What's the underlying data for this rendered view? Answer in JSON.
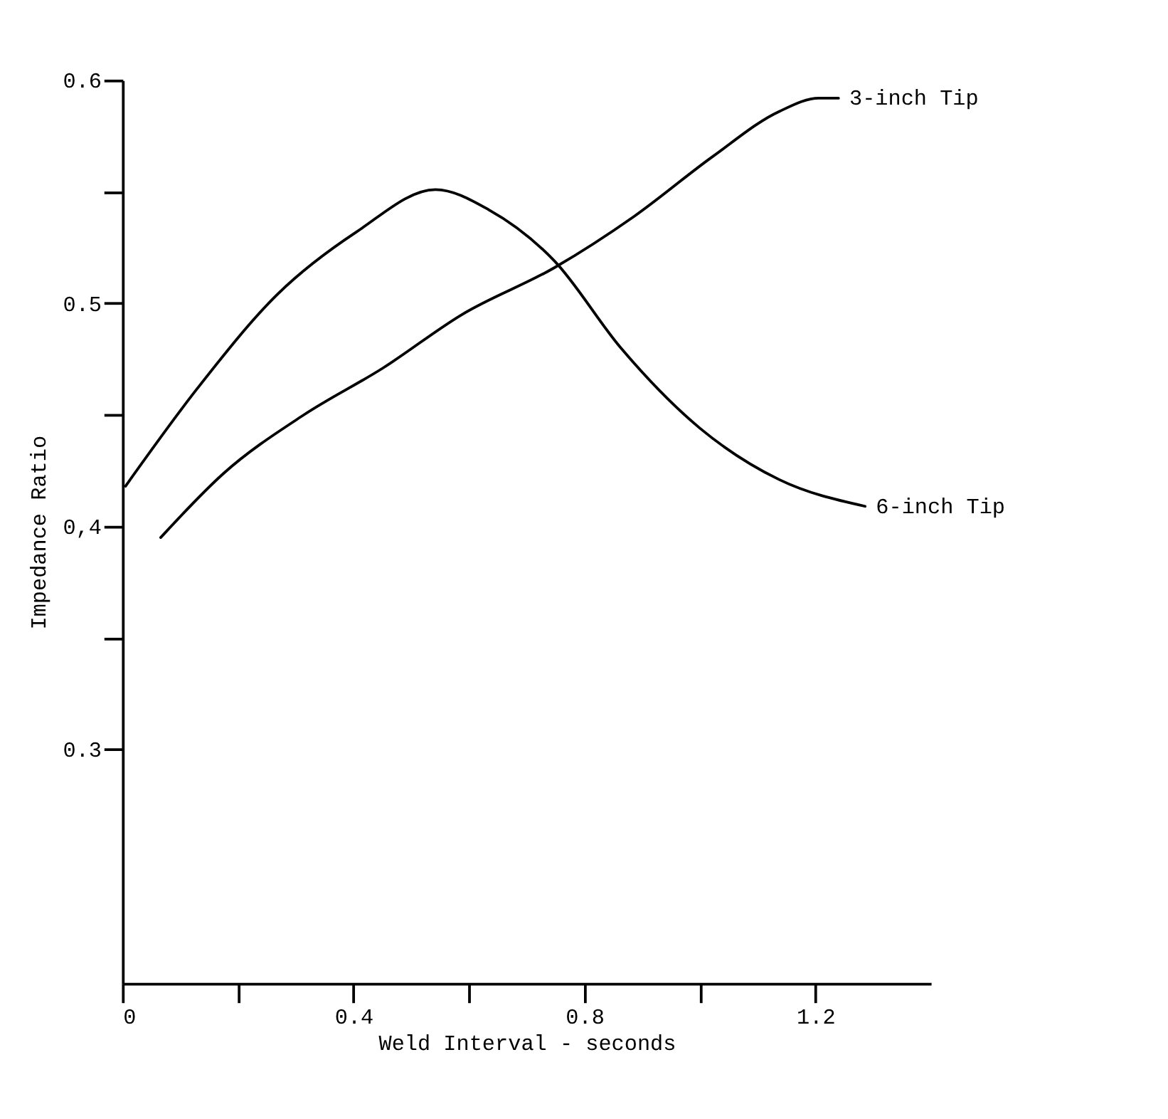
{
  "chart_data": {
    "type": "line",
    "xlabel": "Weld Interval - seconds",
    "ylabel": "Impedance Ratio",
    "xlim": [
      0,
      1.4
    ],
    "ylim": [
      0.195,
      0.6
    ],
    "xticks": [
      0,
      {
        "value": 0.2,
        "label": null
      },
      0.4,
      {
        "value": 0.6,
        "label": null
      },
      0.8,
      {
        "value": 1.0,
        "label": null
      },
      1.2
    ],
    "yticks": [
      0.3,
      {
        "value": 0.35,
        "label": null
      },
      {
        "value": 0.4,
        "label": "0,4"
      },
      {
        "value": 0.45,
        "label": null
      },
      0.5,
      {
        "value": 0.55,
        "label": null
      },
      0.6
    ],
    "grid": false,
    "marker": "none",
    "line_style": "solid",
    "series": [
      {
        "name": "6-inch Tip",
        "color": "#000000",
        "x": [
          0.005,
          0.13,
          0.268,
          0.405,
          0.542,
          0.634,
          0.748,
          0.863,
          1.0,
          1.137,
          1.286
        ],
        "values": [
          0.418,
          0.462,
          0.504,
          0.532,
          0.551,
          0.542,
          0.519,
          0.48,
          0.444,
          0.421,
          0.409
        ]
      },
      {
        "name": "3-inch Tip",
        "color": "#000000",
        "x": [
          0.066,
          0.176,
          0.314,
          0.451,
          0.588,
          0.748,
          0.886,
          1.023,
          1.137,
          1.206,
          1.24
        ],
        "values": [
          0.395,
          0.424,
          0.45,
          0.471,
          0.495,
          0.516,
          0.539,
          0.566,
          0.586,
          0.592,
          0.592
        ]
      }
    ]
  }
}
